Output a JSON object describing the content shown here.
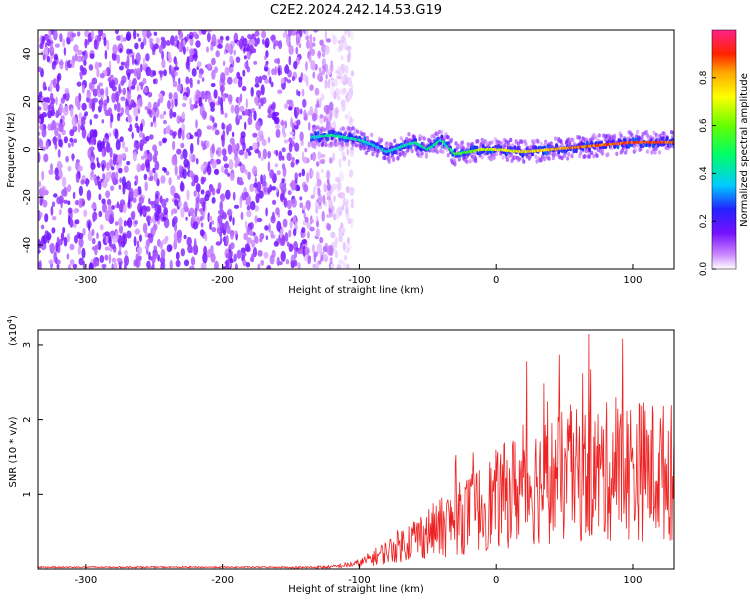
{
  "title": "C2E2.2024.242.14.53.G19",
  "chart_data": [
    {
      "type": "heatmap",
      "title": "C2E2.2024.242.14.53.G19",
      "xlabel": "Height of straight line (km)",
      "ylabel": "Frequency (Hz)",
      "xlim": [
        -335,
        130
      ],
      "ylim": [
        -50,
        50
      ],
      "xticks": [
        -300,
        -200,
        -100,
        0,
        100
      ],
      "yticks": [
        -40,
        -20,
        0,
        20,
        40
      ],
      "noise_region_x": [
        -335,
        -120
      ],
      "signal_track": {
        "x": [
          -135,
          -120,
          -100,
          -90,
          -80,
          -70,
          -60,
          -50,
          -40,
          -30,
          -20,
          -10,
          0,
          20,
          40,
          60,
          80,
          100,
          120,
          130
        ],
        "freq": [
          5,
          6,
          4,
          2,
          -1,
          1,
          3,
          0,
          4,
          -2,
          -1,
          0,
          0,
          -1,
          0,
          1,
          2,
          3,
          3,
          3
        ],
        "amplitude": [
          0.45,
          0.5,
          0.5,
          0.45,
          0.45,
          0.45,
          0.5,
          0.5,
          0.5,
          0.55,
          0.65,
          0.72,
          0.75,
          0.8,
          0.85,
          0.9,
          0.92,
          0.95,
          0.95,
          0.95
        ]
      },
      "colorbar": {
        "label": "Normalized spectral amplitude",
        "range": [
          0,
          1
        ],
        "ticks": [
          "0.0",
          "0.2",
          "0.4",
          "0.6",
          "0.8"
        ]
      }
    },
    {
      "type": "line",
      "xlabel": "Height of straight line (km)",
      "ylabel": "SNR (10 * v/v)",
      "scale_label": "(x10",
      "scale_exp": "4",
      "xlim": [
        -335,
        130
      ],
      "ylim": [
        0,
        3.2
      ],
      "xticks": [
        -300,
        -200,
        -100,
        0,
        100
      ],
      "yticks": [
        1,
        2,
        3
      ],
      "series_color": "#ee2222",
      "envelope": {
        "x": [
          -335,
          -150,
          -120,
          -100,
          -80,
          -60,
          -40,
          -20,
          0,
          20,
          40,
          60,
          80,
          100,
          120,
          130
        ],
        "y": [
          0.02,
          0.02,
          0.03,
          0.08,
          0.25,
          0.45,
          0.6,
          0.8,
          1.0,
          1.2,
          1.3,
          1.35,
          1.4,
          1.45,
          1.4,
          1.4
        ]
      }
    }
  ]
}
